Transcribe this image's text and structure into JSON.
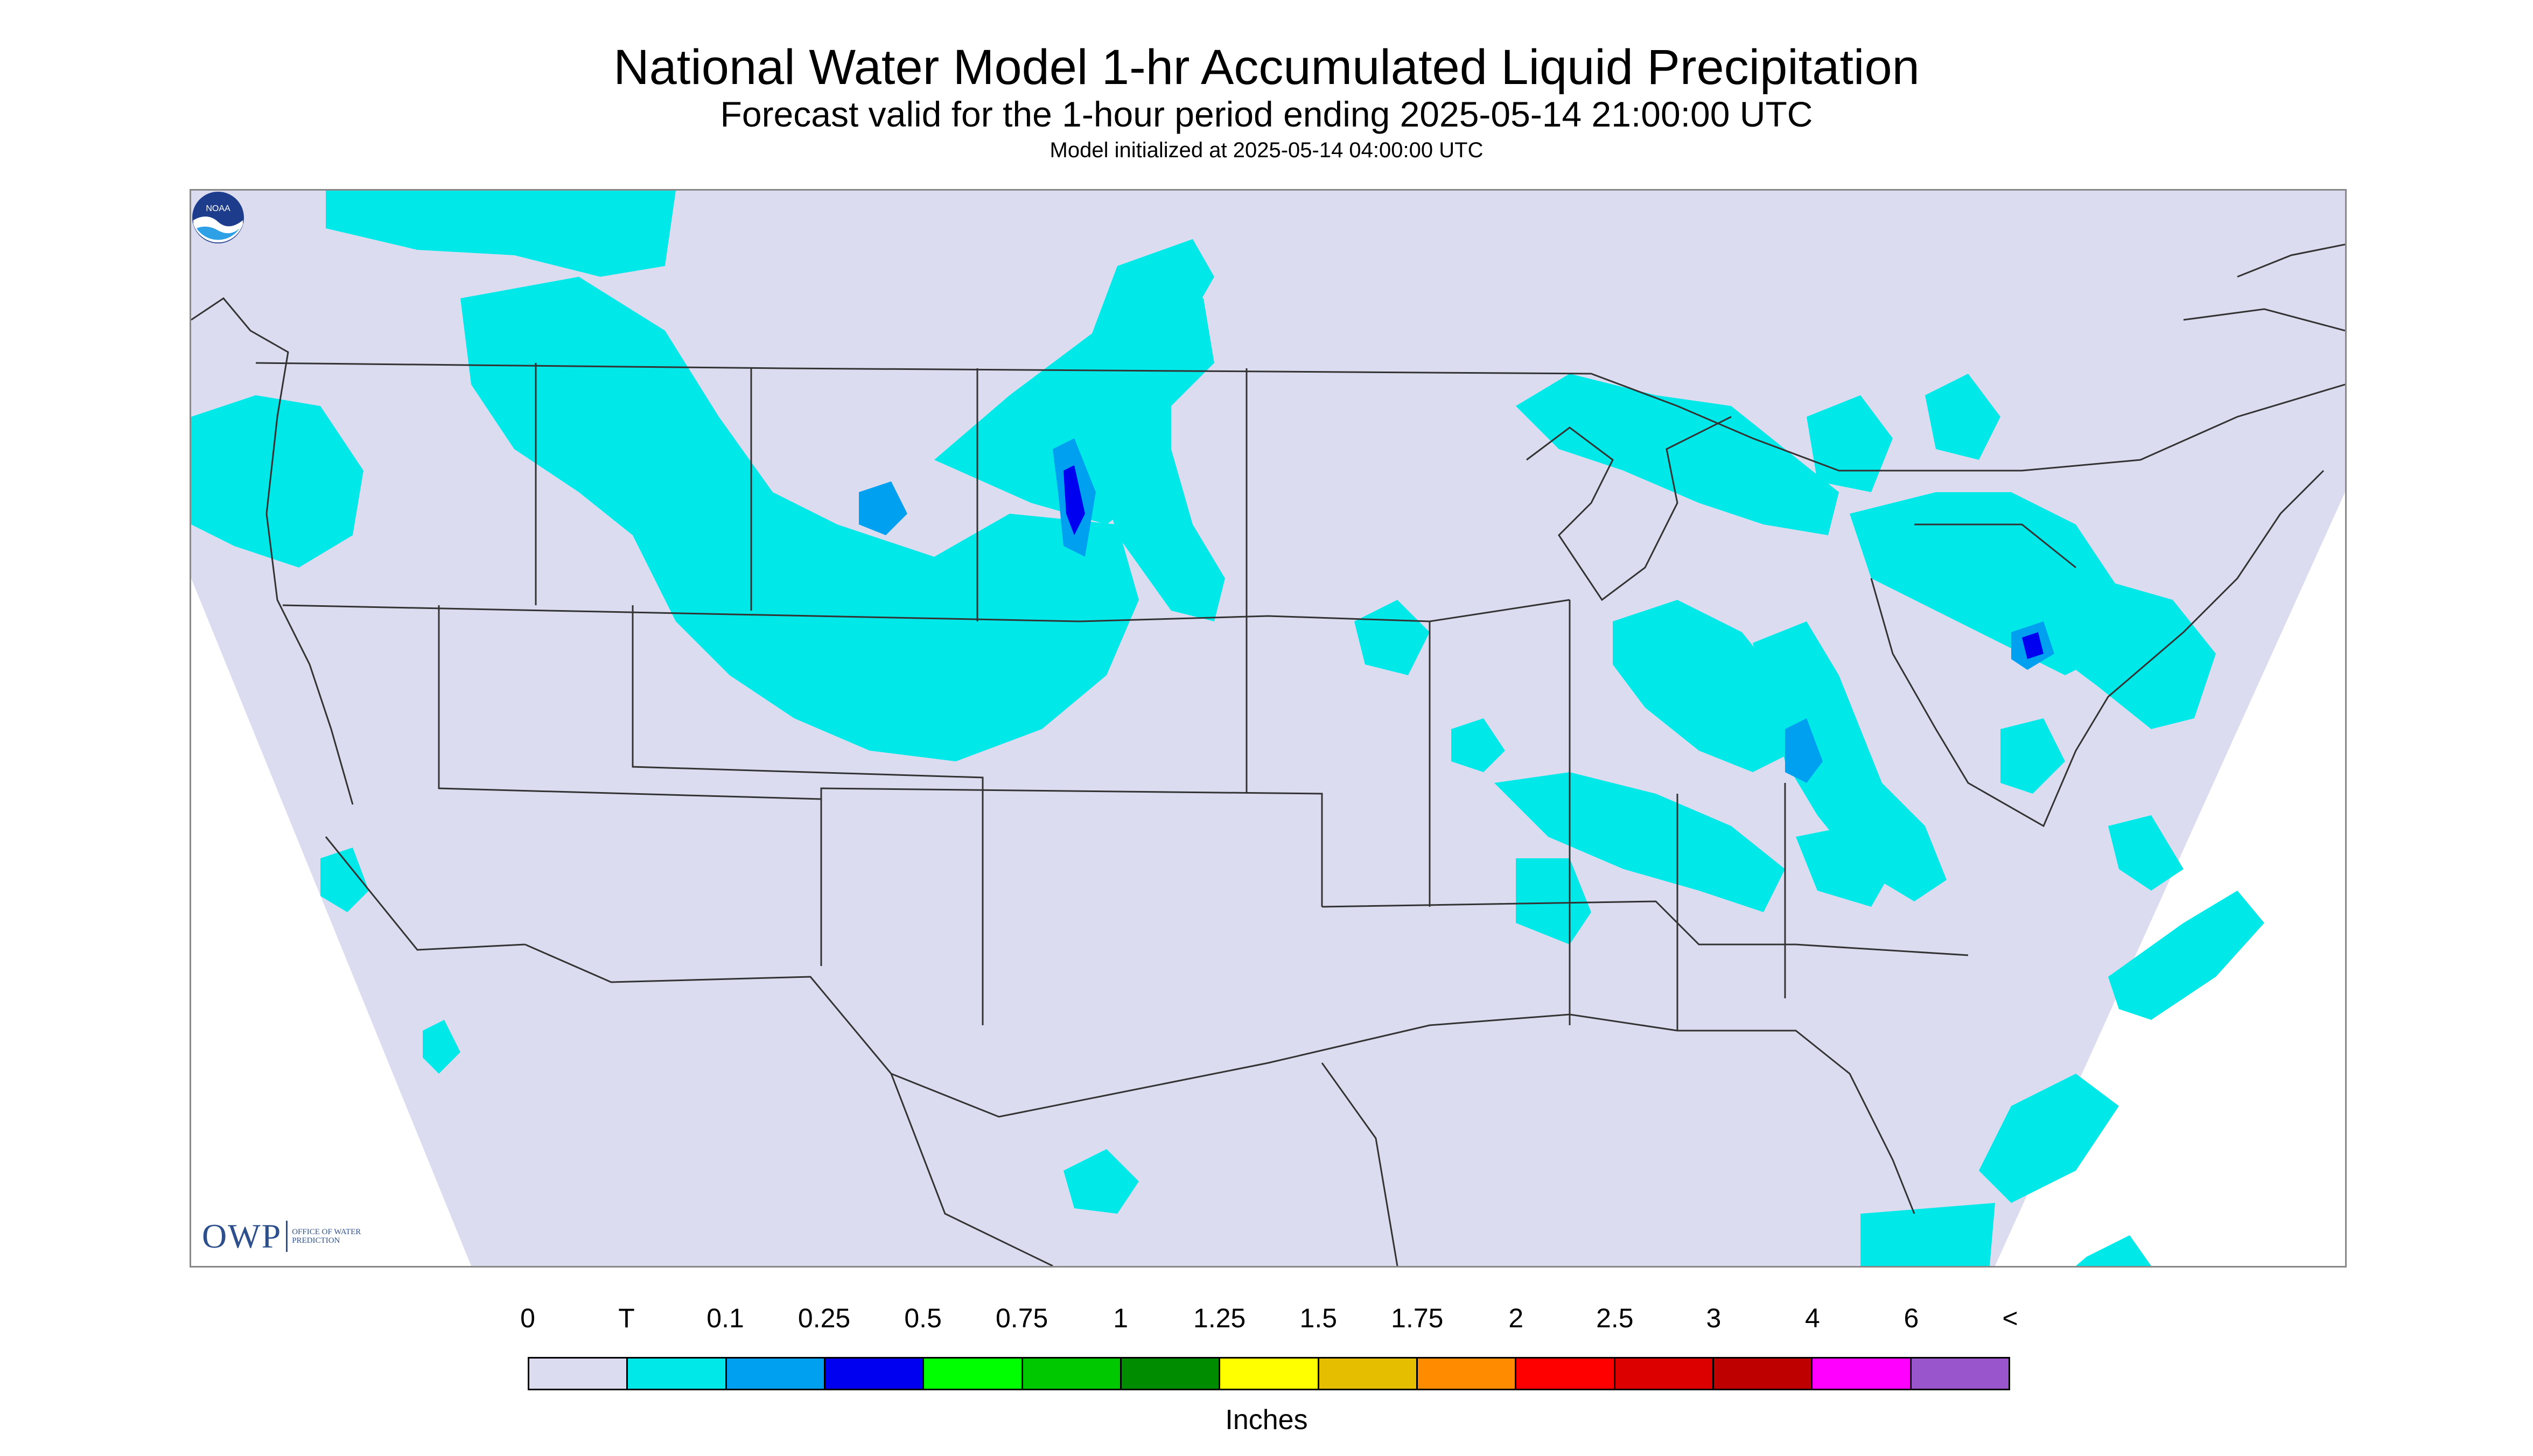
{
  "title": "National Water Model 1-hr Accumulated Liquid Precipitation",
  "subtitle": "Forecast valid for the 1-hour period ending 2025-05-14 21:00:00 UTC",
  "model_init": "Model initialized at 2025-05-14 04:00:00 UTC",
  "logos": {
    "owp_big": "OWP",
    "owp_small": "OFFICE OF WATER PREDICTION",
    "noaa": "NOAA"
  },
  "legend": {
    "units": "Inches",
    "ticks": [
      "0",
      "T",
      "0.1",
      "0.25",
      "0.5",
      "0.75",
      "1",
      "1.25",
      "1.5",
      "1.75",
      "2",
      "2.5",
      "3",
      "4",
      "6",
      "<"
    ],
    "colors": [
      "#dcdcf0",
      "#00e8e8",
      "#00a0f0",
      "#0000f0",
      "#00ff00",
      "#00c800",
      "#008c00",
      "#ffff00",
      "#e6be00",
      "#ff8c00",
      "#ff0000",
      "#dc0000",
      "#be0000",
      "#ff00ff",
      "#9955cc"
    ]
  },
  "map": {
    "domain_fill": "#dcdcf0",
    "border_color": "#333333",
    "precip_color": "#00e8e8"
  }
}
